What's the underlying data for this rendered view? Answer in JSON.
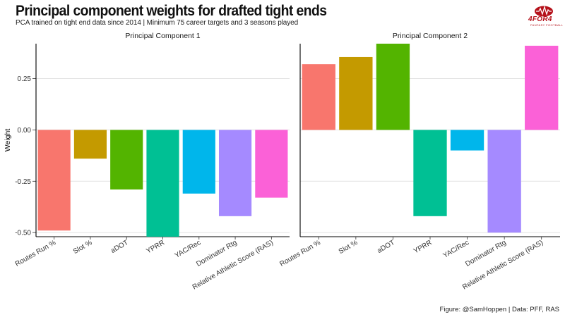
{
  "header": {
    "title": "Principal component weights for drafted tight ends",
    "subtitle": "PCA trained on tight end data since 2014 | Minimum 75 career targets and 3 seasons played"
  },
  "logo": {
    "main": "4FOR4",
    "sub": "FANTASY FOOTBALL"
  },
  "caption": "Figure: @SamHoppen | Data: PFF, RAS",
  "chart_data": {
    "type": "bar",
    "categories": [
      "Routes Run %",
      "Slot %",
      "aDOT",
      "YPRR",
      "YAC/Rec",
      "Dominator Rtg",
      "Relative Athletic Score (RAS)"
    ],
    "colors": [
      "#F8766D",
      "#C49A00",
      "#53B400",
      "#00C094",
      "#00B6EB",
      "#A58AFF",
      "#FB61D7"
    ],
    "ylabel": "Weight",
    "ylim": [
      -0.52,
      0.42
    ],
    "yticks": [
      -0.5,
      -0.25,
      0.0,
      0.25
    ],
    "ytick_labels": [
      "-0.50",
      "-0.25",
      "0.00",
      "0.25"
    ],
    "grid": true,
    "panels": [
      {
        "title": "Principal Component 1",
        "values": [
          -0.49,
          -0.14,
          -0.29,
          -0.52,
          -0.31,
          -0.42,
          -0.33
        ]
      },
      {
        "title": "Principal Component 2",
        "values": [
          0.32,
          0.355,
          0.42,
          -0.42,
          -0.1,
          -0.5,
          0.41
        ]
      }
    ]
  }
}
